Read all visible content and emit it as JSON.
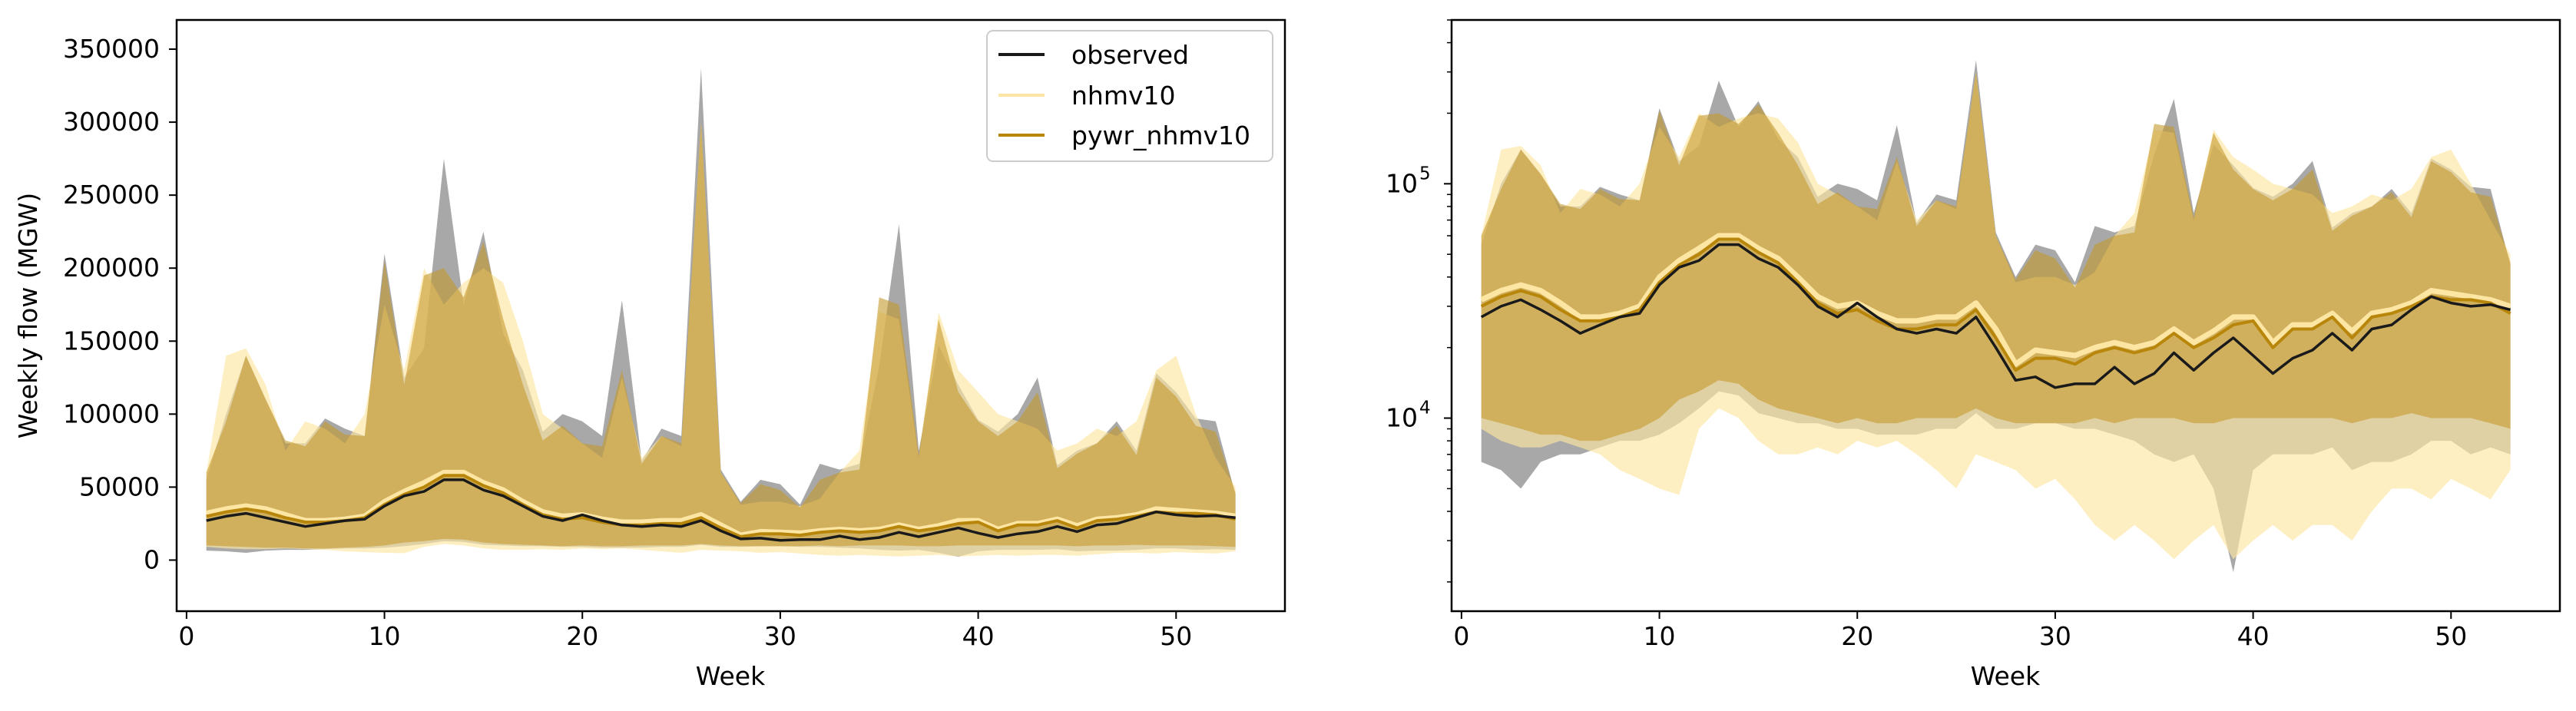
{
  "colors": {
    "observed": "#1a1a1a",
    "nhmv10": "#fde6a3",
    "pywr_nhmv10": "#b8860b",
    "observed_fill": "#6e6e6e",
    "nhmv10_fill": "#fde6a3",
    "pywr_fill": "#c49a2c"
  },
  "chart_data": [
    {
      "type": "area",
      "title": "",
      "xlabel": "Week",
      "ylabel": "Weekly flow (MGW)",
      "xlim": [
        -0.5,
        55.5
      ],
      "ylim": [
        -35000,
        370000
      ],
      "yscale": "linear",
      "xticks": [
        0,
        10,
        20,
        30,
        40,
        50
      ],
      "xtick_labels": [
        "0",
        "10",
        "20",
        "30",
        "40",
        "50"
      ],
      "yticks": [
        0,
        50000,
        100000,
        150000,
        200000,
        250000,
        300000,
        350000
      ],
      "ytick_labels": [
        "0",
        "50000",
        "100000",
        "150000",
        "200000",
        "250000",
        "300000",
        "350000"
      ],
      "legend": {
        "position": "top-right",
        "entries": [
          "observed",
          "nhmv10",
          "pywr_nhmv10"
        ]
      },
      "grid": false
    },
    {
      "type": "area",
      "title": "",
      "xlabel": "Week",
      "ylabel": "",
      "xlim": [
        -0.5,
        55.5
      ],
      "ylim": [
        1500,
        500000
      ],
      "yscale": "log",
      "xticks": [
        0,
        10,
        20,
        30,
        40,
        50
      ],
      "xtick_labels": [
        "0",
        "10",
        "20",
        "30",
        "40",
        "50"
      ],
      "yticks_major": [
        10000,
        100000
      ],
      "ytick_labels": [
        "10",
        "10"
      ],
      "ytick_exponents": [
        "4",
        "5"
      ],
      "grid": false
    }
  ],
  "series": {
    "weeks": [
      1,
      2,
      3,
      4,
      5,
      6,
      7,
      8,
      9,
      10,
      11,
      12,
      13,
      14,
      15,
      16,
      17,
      18,
      19,
      20,
      21,
      22,
      23,
      24,
      25,
      26,
      27,
      28,
      29,
      30,
      31,
      32,
      33,
      34,
      35,
      36,
      37,
      38,
      39,
      40,
      41,
      42,
      43,
      44,
      45,
      46,
      47,
      48,
      49,
      50,
      51,
      52,
      53
    ],
    "observed": {
      "name": "observed",
      "median": [
        27000,
        30000,
        32000,
        29000,
        26000,
        23000,
        25000,
        27000,
        28000,
        37000,
        44000,
        47000,
        55000,
        55000,
        48000,
        44000,
        37000,
        30000,
        27000,
        31000,
        27000,
        24000,
        23000,
        24000,
        23000,
        27000,
        20000,
        14500,
        15000,
        13500,
        14000,
        14000,
        16500,
        14000,
        15500,
        19000,
        16000,
        19000,
        22000,
        18500,
        15500,
        18000,
        19500,
        23000,
        19500,
        24000,
        25000,
        29000,
        33000,
        31000,
        30000,
        30500,
        29000
      ],
      "min": [
        6500,
        6000,
        5000,
        6500,
        7000,
        7000,
        7500,
        8000,
        8000,
        8500,
        9500,
        11000,
        13000,
        12500,
        10500,
        10000,
        9500,
        9500,
        9000,
        9000,
        8500,
        8500,
        8500,
        9000,
        9000,
        10500,
        9000,
        9000,
        9500,
        9500,
        9000,
        9000,
        8500,
        8000,
        7000,
        6500,
        7000,
        5000,
        2200,
        6000,
        7000,
        7000,
        7000,
        7500,
        6000,
        6500,
        6500,
        7000,
        8000,
        8000,
        7000,
        7500,
        7000
      ],
      "max": [
        55000,
        100000,
        140000,
        110000,
        80000,
        80000,
        97000,
        90000,
        85000,
        210000,
        125000,
        145000,
        275000,
        175000,
        225000,
        155000,
        130000,
        88000,
        100000,
        95000,
        85000,
        178000,
        68000,
        90000,
        85000,
        337000,
        62000,
        40000,
        55000,
        52000,
        38000,
        66000,
        62000,
        66000,
        133000,
        230000,
        75000,
        147000,
        120000,
        96000,
        88000,
        100000,
        125000,
        65000,
        75000,
        80000,
        95000,
        75000,
        128000,
        115000,
        97000,
        95000,
        45000
      ]
    },
    "nhmv10": {
      "name": "nhmv10",
      "median": [
        32000,
        35000,
        37000,
        35000,
        31000,
        27000,
        27000,
        28000,
        30000,
        40000,
        47000,
        53000,
        60000,
        60000,
        53000,
        48000,
        40000,
        33000,
        30000,
        31000,
        28000,
        26000,
        26000,
        27000,
        27000,
        31000,
        24000,
        17000,
        19500,
        19000,
        18500,
        20000,
        21000,
        20000,
        21000,
        24000,
        21000,
        23500,
        27000,
        27000,
        21000,
        25000,
        25000,
        28000,
        23500,
        28000,
        29000,
        31000,
        35000,
        34000,
        33000,
        32000,
        30000
      ],
      "min": [
        9000,
        8000,
        7500,
        7500,
        8000,
        7500,
        7000,
        6000,
        5500,
        5000,
        4700,
        9000,
        11000,
        10000,
        8000,
        7000,
        7000,
        7500,
        7000,
        8000,
        7500,
        8000,
        7000,
        6000,
        5000,
        7000,
        6500,
        6000,
        5000,
        5500,
        4500,
        3500,
        3000,
        3500,
        3000,
        2500,
        3000,
        3500,
        2500,
        3000,
        3500,
        3000,
        3500,
        3500,
        3000,
        4000,
        5000,
        5000,
        4500,
        5500,
        5000,
        4500,
        6000
      ],
      "max": [
        60000,
        140000,
        145000,
        120000,
        75000,
        95000,
        90000,
        80000,
        100000,
        175000,
        130000,
        200000,
        175000,
        190000,
        200000,
        190000,
        150000,
        100000,
        90000,
        80000,
        70000,
        125000,
        70000,
        85000,
        78000,
        300000,
        60000,
        38000,
        40000,
        40000,
        37000,
        42000,
        60000,
        75000,
        170000,
        165000,
        70000,
        170000,
        130000,
        115000,
        100000,
        95000,
        90000,
        75000,
        80000,
        90000,
        85000,
        95000,
        130000,
        140000,
        100000,
        70000,
        50000
      ]
    },
    "pywr_nhmv10": {
      "name": "pywr_nhmv10",
      "median": [
        30000,
        33000,
        35000,
        33000,
        29000,
        26000,
        26000,
        27000,
        29000,
        38000,
        45000,
        50000,
        58000,
        58000,
        51000,
        46000,
        38000,
        31000,
        28000,
        29000,
        26000,
        24000,
        24000,
        25000,
        25000,
        29000,
        22000,
        16000,
        18000,
        18000,
        17000,
        19000,
        20000,
        19000,
        20000,
        23000,
        20000,
        22000,
        25000,
        26000,
        20000,
        24000,
        24000,
        27000,
        22000,
        27000,
        28000,
        30000,
        33000,
        32000,
        32000,
        31000,
        28000
      ],
      "min": [
        10000,
        9500,
        9000,
        8500,
        8500,
        8000,
        8000,
        8500,
        9000,
        10000,
        12000,
        13000,
        14500,
        14000,
        12000,
        11000,
        10500,
        10000,
        9500,
        10000,
        9500,
        9500,
        10000,
        10000,
        10000,
        11000,
        10000,
        9500,
        9500,
        9500,
        9500,
        10000,
        9500,
        10000,
        10000,
        10000,
        9500,
        9500,
        10000,
        10000,
        10000,
        10000,
        10000,
        10000,
        9500,
        10000,
        10000,
        10500,
        10000,
        10000,
        10000,
        9500,
        9000
      ],
      "max": [
        60000,
        95000,
        140000,
        110000,
        82000,
        78000,
        95000,
        86000,
        85000,
        205000,
        120000,
        195000,
        200000,
        180000,
        218000,
        165000,
        120000,
        82000,
        92000,
        80000,
        78000,
        130000,
        66000,
        85000,
        80000,
        300000,
        60000,
        39000,
        52000,
        48000,
        36000,
        55000,
        60000,
        62000,
        180000,
        175000,
        72000,
        165000,
        115000,
        95000,
        85000,
        95000,
        115000,
        63000,
        73000,
        80000,
        92000,
        72000,
        125000,
        112000,
        92000,
        88000,
        46000
      ]
    }
  }
}
